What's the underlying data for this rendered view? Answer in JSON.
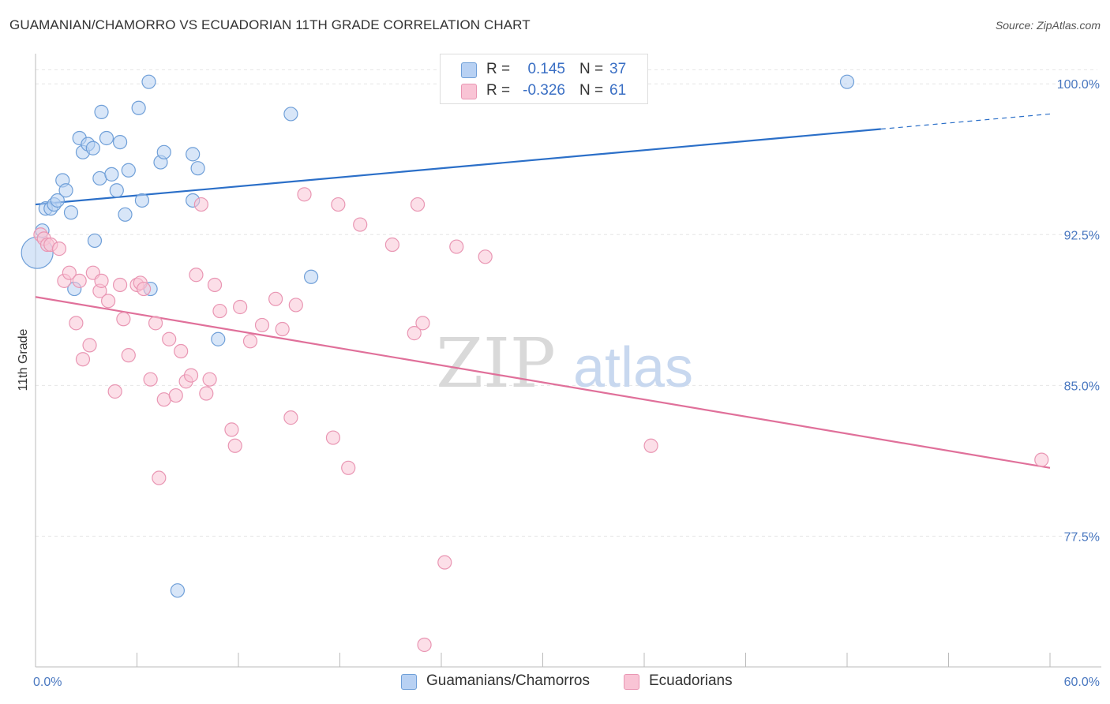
{
  "title": "GUAMANIAN/CHAMORRO VS ECUADORIAN 11TH GRADE CORRELATION CHART",
  "source": "Source: ZipAtlas.com",
  "watermark": {
    "zip": "ZIP",
    "atlas": "atlas"
  },
  "legend": {
    "rows": [
      {
        "r_label": "R =",
        "r_value": "0.145",
        "n_label": "N =",
        "n_value": "37"
      },
      {
        "r_label": "R =",
        "r_value": "-0.326",
        "n_label": "N =",
        "n_value": "61"
      }
    ]
  },
  "bottom_legend": {
    "series1": "Guamanians/Chamorros",
    "series2": "Ecuadorians"
  },
  "colors": {
    "blue_fill": "#b8d1f3",
    "blue_stroke": "#6f9fd8",
    "blue_line": "#2b6fc8",
    "pink_fill": "#f9c4d5",
    "pink_stroke": "#e996b3",
    "pink_line": "#e0709a",
    "tick_label": "#4a78c0"
  },
  "chart_data": {
    "type": "scatter",
    "title": "GUAMANIAN/CHAMORRO VS ECUADORIAN 11TH GRADE CORRELATION CHART",
    "xlabel": "",
    "ylabel": "11th Grade",
    "xlim": [
      0,
      60
    ],
    "ylim": [
      71.0,
      101.5
    ],
    "x_tick_labels": [
      "0.0%",
      "60.0%"
    ],
    "y_ticks": [
      77.5,
      85.0,
      92.5,
      100.0
    ],
    "y_tick_labels": [
      "77.5%",
      "85.0%",
      "92.5%",
      "100.0%"
    ],
    "grid": true,
    "legend_position": "top-center",
    "series": [
      {
        "name": "Guamanians/Chamorros",
        "r": 0.145,
        "n": 37,
        "trend": {
          "x": [
            0,
            50,
            60
          ],
          "y": [
            94.0,
            97.7,
            98.5
          ],
          "solid_until_x": 50
        },
        "points": [
          {
            "x": 0.1,
            "y": 91.6,
            "big": true
          },
          {
            "x": 0.4,
            "y": 92.7
          },
          {
            "x": 0.6,
            "y": 93.8
          },
          {
            "x": 0.9,
            "y": 93.8
          },
          {
            "x": 1.1,
            "y": 94.0
          },
          {
            "x": 1.3,
            "y": 94.2
          },
          {
            "x": 1.6,
            "y": 95.2
          },
          {
            "x": 1.8,
            "y": 94.7
          },
          {
            "x": 2.1,
            "y": 93.6
          },
          {
            "x": 2.3,
            "y": 89.8
          },
          {
            "x": 2.6,
            "y": 97.3
          },
          {
            "x": 2.8,
            "y": 96.6
          },
          {
            "x": 3.1,
            "y": 97.0
          },
          {
            "x": 3.4,
            "y": 96.8
          },
          {
            "x": 3.5,
            "y": 92.2
          },
          {
            "x": 3.8,
            "y": 95.3
          },
          {
            "x": 3.9,
            "y": 98.6
          },
          {
            "x": 4.2,
            "y": 97.3
          },
          {
            "x": 4.5,
            "y": 95.5
          },
          {
            "x": 4.8,
            "y": 94.7
          },
          {
            "x": 5.0,
            "y": 97.1
          },
          {
            "x": 5.3,
            "y": 93.5
          },
          {
            "x": 5.5,
            "y": 95.7
          },
          {
            "x": 6.1,
            "y": 98.8
          },
          {
            "x": 6.3,
            "y": 94.2
          },
          {
            "x": 6.7,
            "y": 100.1
          },
          {
            "x": 6.8,
            "y": 89.8
          },
          {
            "x": 7.4,
            "y": 96.1
          },
          {
            "x": 7.6,
            "y": 96.6
          },
          {
            "x": 8.4,
            "y": 74.8
          },
          {
            "x": 9.3,
            "y": 96.5
          },
          {
            "x": 9.3,
            "y": 94.2
          },
          {
            "x": 9.6,
            "y": 95.8
          },
          {
            "x": 10.8,
            "y": 87.3
          },
          {
            "x": 15.1,
            "y": 98.5
          },
          {
            "x": 16.3,
            "y": 90.4
          },
          {
            "x": 48.0,
            "y": 100.1
          }
        ]
      },
      {
        "name": "Ecuadorians",
        "r": -0.326,
        "n": 61,
        "trend": {
          "x": [
            0,
            60
          ],
          "y": [
            89.4,
            80.9
          ]
        },
        "points": [
          {
            "x": 0.3,
            "y": 92.5
          },
          {
            "x": 0.5,
            "y": 92.3
          },
          {
            "x": 0.7,
            "y": 92.0
          },
          {
            "x": 0.9,
            "y": 92.0
          },
          {
            "x": 1.4,
            "y": 91.8
          },
          {
            "x": 1.7,
            "y": 90.2
          },
          {
            "x": 2.0,
            "y": 90.6
          },
          {
            "x": 2.4,
            "y": 88.1
          },
          {
            "x": 2.6,
            "y": 90.2
          },
          {
            "x": 2.8,
            "y": 86.3
          },
          {
            "x": 3.2,
            "y": 87.0
          },
          {
            "x": 3.4,
            "y": 90.6
          },
          {
            "x": 3.8,
            "y": 89.7
          },
          {
            "x": 3.9,
            "y": 90.2
          },
          {
            "x": 4.3,
            "y": 89.2
          },
          {
            "x": 4.7,
            "y": 84.7
          },
          {
            "x": 5.0,
            "y": 90.0
          },
          {
            "x": 5.2,
            "y": 88.3
          },
          {
            "x": 5.5,
            "y": 86.5
          },
          {
            "x": 6.0,
            "y": 90.0
          },
          {
            "x": 6.2,
            "y": 90.1
          },
          {
            "x": 6.4,
            "y": 89.8
          },
          {
            "x": 6.8,
            "y": 85.3
          },
          {
            "x": 7.1,
            "y": 88.1
          },
          {
            "x": 7.3,
            "y": 80.4
          },
          {
            "x": 7.6,
            "y": 84.3
          },
          {
            "x": 7.9,
            "y": 87.3
          },
          {
            "x": 8.3,
            "y": 84.5
          },
          {
            "x": 8.6,
            "y": 86.7
          },
          {
            "x": 8.9,
            "y": 85.2
          },
          {
            "x": 9.2,
            "y": 85.5
          },
          {
            "x": 9.5,
            "y": 90.5
          },
          {
            "x": 9.8,
            "y": 94.0
          },
          {
            "x": 10.1,
            "y": 84.6
          },
          {
            "x": 10.3,
            "y": 85.3
          },
          {
            "x": 10.6,
            "y": 90.0
          },
          {
            "x": 10.9,
            "y": 88.7
          },
          {
            "x": 11.6,
            "y": 82.8
          },
          {
            "x": 11.8,
            "y": 82.0
          },
          {
            "x": 12.1,
            "y": 88.9
          },
          {
            "x": 12.7,
            "y": 87.2
          },
          {
            "x": 13.4,
            "y": 88.0
          },
          {
            "x": 14.2,
            "y": 89.3
          },
          {
            "x": 14.6,
            "y": 87.8
          },
          {
            "x": 15.1,
            "y": 83.4
          },
          {
            "x": 15.4,
            "y": 89.0
          },
          {
            "x": 15.9,
            "y": 94.5
          },
          {
            "x": 17.6,
            "y": 82.4
          },
          {
            "x": 17.9,
            "y": 94.0
          },
          {
            "x": 18.5,
            "y": 80.9
          },
          {
            "x": 19.2,
            "y": 93.0
          },
          {
            "x": 21.1,
            "y": 92.0
          },
          {
            "x": 22.4,
            "y": 87.6
          },
          {
            "x": 22.6,
            "y": 94.0
          },
          {
            "x": 22.9,
            "y": 88.1
          },
          {
            "x": 23.0,
            "y": 72.1
          },
          {
            "x": 24.2,
            "y": 76.2
          },
          {
            "x": 24.9,
            "y": 91.9
          },
          {
            "x": 26.6,
            "y": 91.4
          },
          {
            "x": 36.4,
            "y": 82.0
          },
          {
            "x": 59.5,
            "y": 81.3
          }
        ]
      }
    ]
  }
}
